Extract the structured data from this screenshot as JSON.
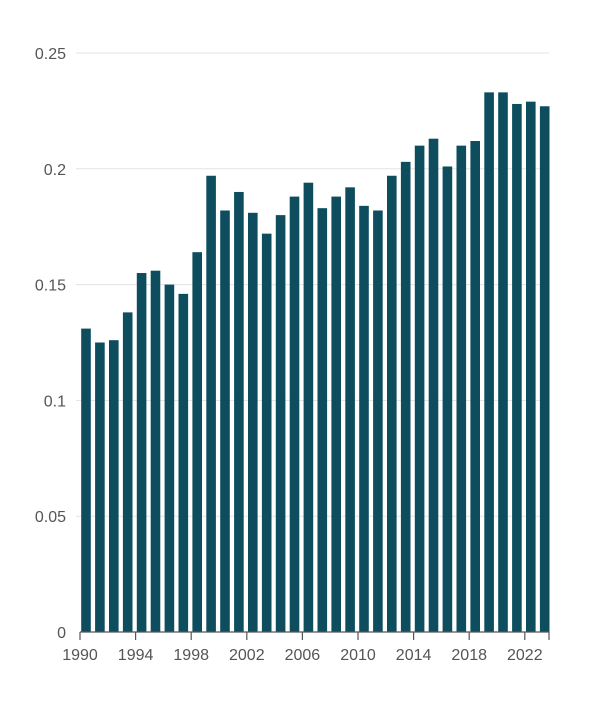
{
  "chart_data": {
    "type": "bar",
    "title": "",
    "xlabel": "",
    "ylabel": "",
    "bar_color": "#0d4d5e",
    "ylim": [
      0,
      0.25
    ],
    "grid": true,
    "y_ticks": [
      "0",
      "0.05",
      "0.1",
      "0.15",
      "0.2",
      "0.25"
    ],
    "x_ticks": [
      "1990",
      "1994",
      "1998",
      "2002",
      "2006",
      "2010",
      "2014",
      "2018",
      "2022"
    ],
    "categories": [
      1990,
      1991,
      1992,
      1993,
      1994,
      1995,
      1996,
      1997,
      1998,
      1999,
      2000,
      2001,
      2002,
      2003,
      2004,
      2005,
      2006,
      2007,
      2008,
      2009,
      2010,
      2011,
      2012,
      2013,
      2014,
      2015,
      2016,
      2017,
      2018,
      2019,
      2020,
      2021,
      2022,
      2023
    ],
    "values": [
      0.131,
      0.125,
      0.126,
      0.138,
      0.155,
      0.156,
      0.15,
      0.146,
      0.164,
      0.197,
      0.182,
      0.19,
      0.181,
      0.172,
      0.18,
      0.188,
      0.194,
      0.183,
      0.188,
      0.192,
      0.184,
      0.182,
      0.197,
      0.203,
      0.21,
      0.213,
      0.201,
      0.21,
      0.212,
      0.233,
      0.233,
      0.228,
      0.229,
      0.227
    ]
  }
}
